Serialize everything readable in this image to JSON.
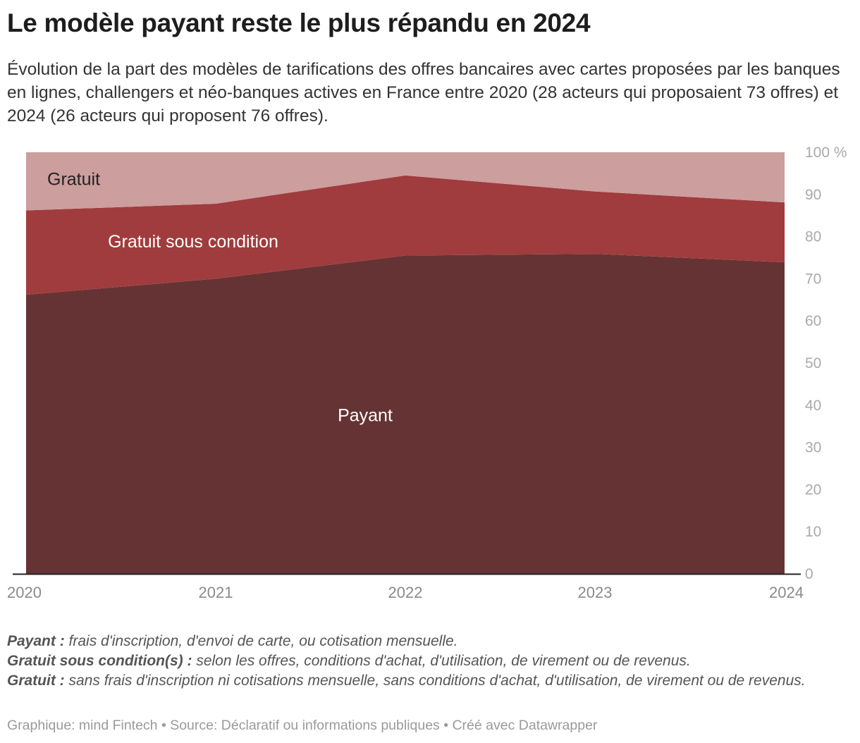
{
  "title": "Le modèle payant reste le plus répandu en 2024",
  "subtitle": "Évolution de la part des modèles de tarifications des offres bancaires avec cartes proposées par les banques en lignes, challengers et néo-banques actives en France entre 2020 (28 acteurs qui proposaient 73 offres) et 2024 (26 acteurs qui proposent 76 offres).",
  "chart_data": {
    "type": "area",
    "stacked": true,
    "x": [
      "2020",
      "2021",
      "2022",
      "2023",
      "2024"
    ],
    "series": [
      {
        "name": "Payant",
        "values": [
          66.2,
          70.0,
          75.5,
          75.9,
          73.9
        ],
        "color": "#663334"
      },
      {
        "name": "Gratuit sous condition",
        "values": [
          20.0,
          17.8,
          19.0,
          14.8,
          14.2
        ],
        "color": "#a03c3d"
      },
      {
        "name": "Gratuit",
        "values": [
          13.8,
          12.2,
          5.5,
          9.3,
          11.9
        ],
        "color": "#cc9e9e"
      }
    ],
    "ylim": [
      0,
      100
    ],
    "yticks": [
      0,
      10,
      20,
      30,
      40,
      50,
      60,
      70,
      80,
      90,
      100
    ],
    "ytick_labels": [
      "0",
      "10",
      "20",
      "30",
      "40",
      "50",
      "60",
      "70",
      "80",
      "90",
      "100 %"
    ],
    "y_axis_position": "right",
    "grid": false,
    "legend": "none",
    "label_colors": [
      "#ffffff",
      "#ffffff",
      "#222222"
    ]
  },
  "notes": [
    {
      "term": "Payant :",
      "text": " frais d'inscription, d'envoi de carte, ou cotisation mensuelle."
    },
    {
      "term": "Gratuit sous condition(s) :",
      "text": " selon les offres, conditions d'achat, d'utilisation, de virement ou de revenus."
    },
    {
      "term": "Gratuit :",
      "text": " sans frais d'inscription ni cotisations mensuelle, sans conditions d'achat, d'utilisation, de virement ou de revenus."
    }
  ],
  "footer": "Graphique: mind Fintech • Source: Déclaratif ou informations publiques • Créé avec Datawrapper"
}
